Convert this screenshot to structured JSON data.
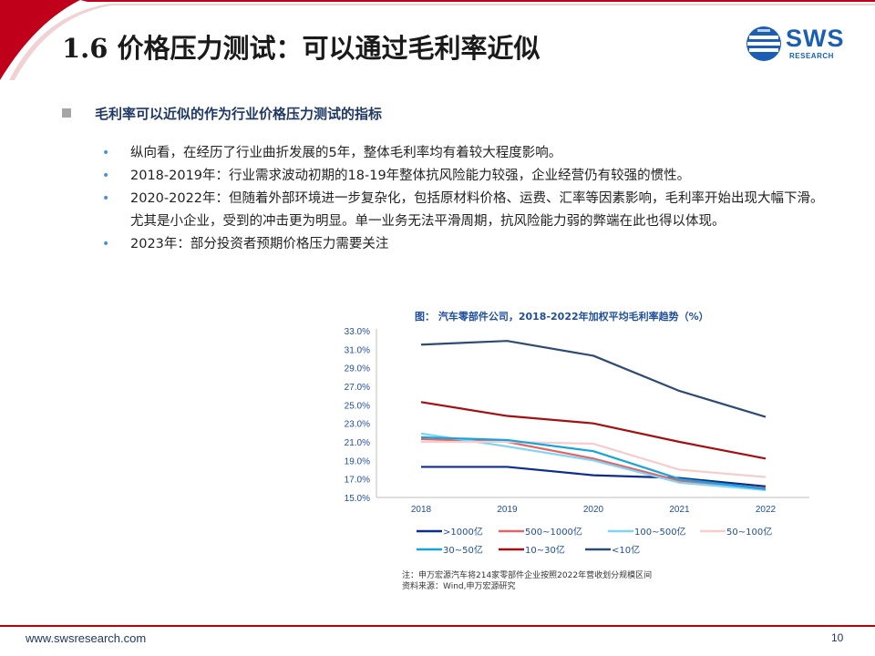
{
  "header": {
    "title": "1.6 价格压力测试：可以通过毛利率近似",
    "logo_text": "SWS",
    "logo_sub": "RESEARCH"
  },
  "section": {
    "heading": "毛利率可以近似的作为行业价格压力测试的指标"
  },
  "bullets": [
    "纵向看，在经历了行业曲折发展的5年，整体毛利率均有着较大程度影响。",
    "2018-2019年：行业需求波动初期的18-19年整体抗风险能力较强，企业经营仍有较强的惯性。",
    "2020-2022年：但随着外部环境进一步复杂化，包括原材料价格、运费、汇率等因素影响，毛利率开始出现大幅下滑。尤其是小企业，受到的冲击更为明显。单一业务无法平滑周期，抗风险能力弱的弊端在此也得以体现。",
    "2023年：部分投资者预期价格压力需要关注"
  ],
  "chart_title": "图：  汽车零部件公司，2018-2022年加权平均毛利率趋势（%）",
  "chart_data": {
    "type": "line",
    "x": [
      "2018",
      "2019",
      "2020",
      "2021",
      "2022"
    ],
    "ylim": [
      15.0,
      33.0
    ],
    "yticks": [
      "15.0%",
      "17.0%",
      "19.0%",
      "21.0%",
      "23.0%",
      "25.0%",
      "27.0%",
      "29.0%",
      "31.0%",
      "33.0%"
    ],
    "series": [
      {
        "name": ">1000亿",
        "color": "#0b2d8c",
        "values": [
          18.3,
          18.3,
          17.4,
          17.1,
          16.2
        ]
      },
      {
        "name": "500~1000亿",
        "color": "#e06666",
        "values": [
          21.3,
          21.0,
          19.2,
          16.8,
          16.0
        ]
      },
      {
        "name": "100~500亿",
        "color": "#7fd3f5",
        "values": [
          21.9,
          20.5,
          19.0,
          16.6,
          15.8
        ]
      },
      {
        "name": "50~100亿",
        "color": "#f7cccc",
        "values": [
          21.0,
          21.0,
          20.8,
          18.0,
          17.2
        ]
      },
      {
        "name": "30~50亿",
        "color": "#16a3dc",
        "values": [
          21.5,
          21.2,
          20.0,
          17.0,
          15.9
        ]
      },
      {
        "name": "10~30亿",
        "color": "#a50f0f",
        "values": [
          25.3,
          23.8,
          23.0,
          21.0,
          19.2
        ]
      },
      {
        "name": "<10亿",
        "color": "#2d4b73",
        "values": [
          31.5,
          31.9,
          30.3,
          26.5,
          23.7
        ]
      }
    ]
  },
  "note": {
    "line1": "注：申万宏源汽车将214家零部件企业按照2022年营收划分规模区间",
    "line2": "资料来源：Wind,申万宏源研究"
  },
  "footer": {
    "url": "www.swsresearch.com",
    "page": "10"
  }
}
